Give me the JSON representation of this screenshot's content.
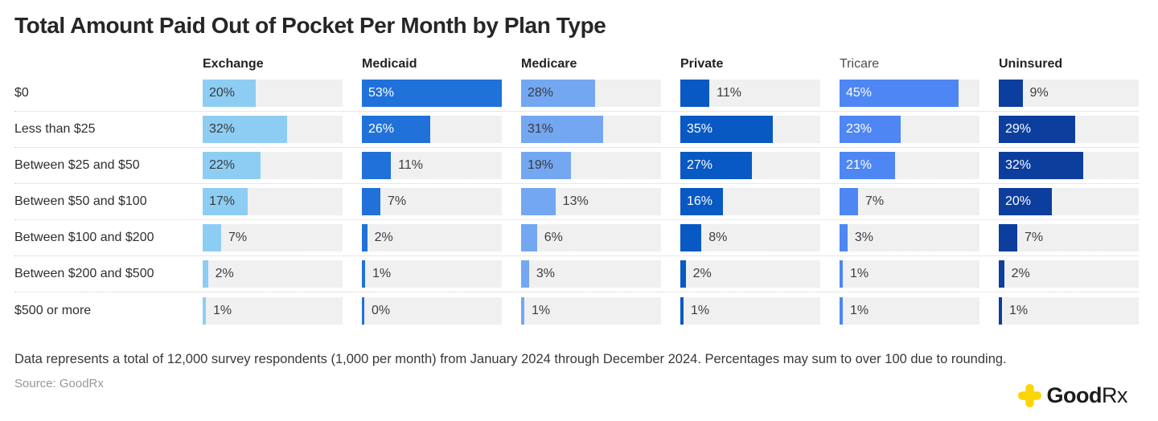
{
  "title": "Total Amount Paid Out of Pocket Per Month by Plan Type",
  "chart_data": {
    "type": "bar",
    "orientation": "horizontal",
    "unit": "%",
    "scale_max": 53,
    "inside_label_threshold": 16,
    "track_color": "#f0f0f0",
    "categories": [
      "$0",
      "Less than $25",
      "Between $25 and $50",
      "Between $50 and $100",
      "Between $100 and $200",
      "Between $200 and $500",
      "$500 or more"
    ],
    "series": [
      {
        "name": "Exchange",
        "color": "#8ecdf3",
        "label_in_color": "#3a3a3a",
        "header_muted": false,
        "values": [
          20,
          32,
          22,
          17,
          7,
          2,
          1
        ]
      },
      {
        "name": "Medicaid",
        "color": "#2071d9",
        "label_in_color": "#ffffff",
        "header_muted": false,
        "values": [
          53,
          26,
          11,
          7,
          2,
          1,
          0
        ]
      },
      {
        "name": "Medicare",
        "color": "#74a7f1",
        "label_in_color": "#3a3a3a",
        "header_muted": false,
        "values": [
          28,
          31,
          19,
          13,
          6,
          3,
          1
        ]
      },
      {
        "name": "Private",
        "color": "#0859c4",
        "label_in_color": "#ffffff",
        "header_muted": false,
        "values": [
          11,
          35,
          27,
          16,
          8,
          2,
          1
        ]
      },
      {
        "name": "Tricare",
        "color": "#4e86f3",
        "label_in_color": "#ffffff",
        "header_muted": true,
        "values": [
          45,
          23,
          21,
          7,
          3,
          1,
          1
        ]
      },
      {
        "name": "Uninsured",
        "color": "#0c3e9d",
        "label_in_color": "#ffffff",
        "header_muted": false,
        "values": [
          9,
          29,
          32,
          20,
          7,
          2,
          1
        ]
      }
    ]
  },
  "footnote": "Data represents a total of 12,000 survey respondents (1,000 per month) from January 2024 through December 2024. Percentages may sum to over 100 due to rounding.",
  "source": "Source: GoodRx",
  "logo": {
    "brand_bold": "Good",
    "brand_light": "Rx",
    "plus_color": "#fdd505"
  }
}
